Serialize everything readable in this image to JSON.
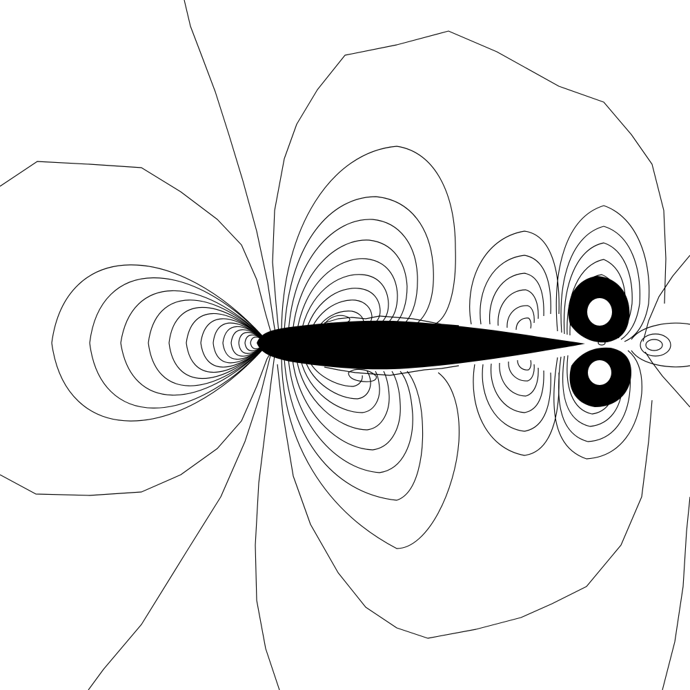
{
  "figure": {
    "description_visible_text": "",
    "background_color": "#ffffff",
    "line_color": "#000000",
    "body_fill_color": "#000000",
    "hole_fill_color": "#ffffff"
  }
}
